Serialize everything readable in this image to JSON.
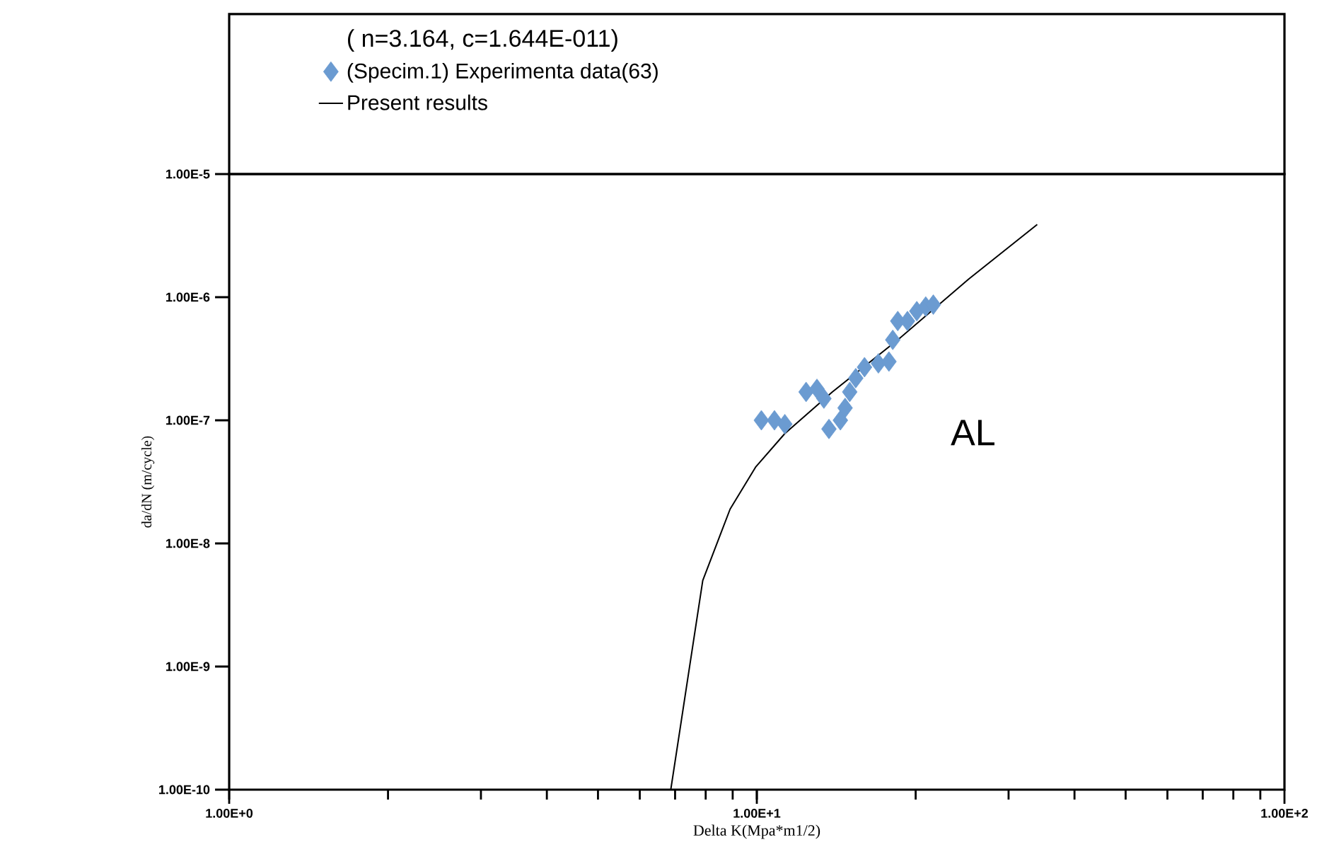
{
  "chart_data": {
    "type": "scatter",
    "legend_title": "( n=3.164, c=1.644E-011)",
    "xlabel": "Delta K(Mpa*m1/2)",
    "ylabel": "da/dN (m/cycle)",
    "annotations": [
      "AL"
    ],
    "log": "xy",
    "legend": "top",
    "grid": false,
    "xlim": [
      1,
      100
    ],
    "ylim": [
      1e-10,
      1e-05
    ],
    "xticks": [
      {
        "value": 1,
        "label": "1.00E+0"
      },
      {
        "value": 10,
        "label": "1.00E+1"
      },
      {
        "value": 100,
        "label": "1.00E+2"
      }
    ],
    "yticks": [
      {
        "value": 1e-10,
        "label": "1.00E-10"
      },
      {
        "value": 1e-09,
        "label": "1.00E-9"
      },
      {
        "value": 1e-08,
        "label": "1.00E-8"
      },
      {
        "value": 1e-07,
        "label": "1.00E-7"
      },
      {
        "value": 1e-06,
        "label": "1.00E-6"
      },
      {
        "value": 1e-05,
        "label": "1.00E-5"
      }
    ],
    "series": [
      {
        "name": "(Specim.1) Experimenta data(63)",
        "marker": "diamond",
        "color": "#6b9bd1",
        "x": [
          10.2,
          10.8,
          11.3,
          12.4,
          13.0,
          13.4,
          13.7,
          14.4,
          14.7,
          15.0,
          15.4,
          16.0,
          17.0,
          17.8,
          18.1,
          18.5,
          19.3,
          20.1,
          20.9,
          21.6
        ],
        "values": [
          1e-07,
          1e-07,
          9.3e-08,
          1.7e-07,
          1.8e-07,
          1.5e-07,
          8.5e-08,
          1e-07,
          1.26e-07,
          1.7e-07,
          2.2e-07,
          2.7e-07,
          2.9e-07,
          3e-07,
          4.5e-07,
          6.4e-07,
          6.4e-07,
          7.7e-07,
          8.4e-07,
          8.7e-07
        ]
      },
      {
        "name": "Present results",
        "type": "line",
        "marker": "none",
        "line_style": "solid",
        "color": "#000000",
        "x": [
          6.87,
          7.9,
          8.9,
          9.96,
          11.3,
          13.9,
          18.5,
          25.2,
          34
        ],
        "values": [
          1e-10,
          5e-09,
          1.9e-08,
          4.2e-08,
          7.8e-08,
          1.7e-07,
          4.5e-07,
          1.4e-06,
          3.9e-06
        ]
      }
    ]
  }
}
